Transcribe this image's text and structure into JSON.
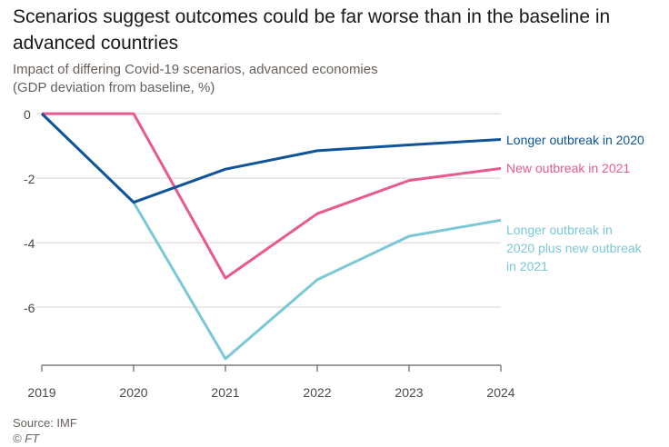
{
  "title": "Scenarios suggest outcomes could be far worse than in the baseline in advanced countries",
  "subtitle_line1": "Impact of differing Covid-19 scenarios, advanced economies",
  "subtitle_line2": "(GDP deviation from baseline, %)",
  "source": "Source: IMF",
  "credit": "© FT",
  "chart_data": {
    "type": "line",
    "x": [
      "2019",
      "2020",
      "2021",
      "2022",
      "2023",
      "2024"
    ],
    "ylim": [
      -7.8,
      0.2
    ],
    "yticks": [
      0,
      -2,
      -4,
      -6
    ],
    "yticklabels": [
      "0",
      "-2",
      "-4",
      "-6"
    ],
    "grid": true,
    "series": [
      {
        "name": "Longer outbreak in 2020",
        "color": "#0f5499",
        "values": [
          0,
          -2.75,
          -1.72,
          -1.15,
          -0.97,
          -0.8
        ]
      },
      {
        "name": "New outbreak in 2021",
        "color": "#e8598f",
        "values": [
          0,
          0,
          -5.1,
          -3.1,
          -2.07,
          -1.7
        ]
      },
      {
        "name": "Longer outbreak in 2020 plus new outbreak in 2021",
        "color": "#7ac8d6",
        "values": [
          0,
          -2.75,
          -7.6,
          -5.15,
          -3.8,
          -3.3
        ]
      }
    ],
    "series_label_lines": [
      [
        "Longer outbreak in 2020"
      ],
      [
        "New outbreak in 2021"
      ],
      [
        "Longer outbreak in",
        "2020 plus new outbreak",
        "in 2021"
      ]
    ]
  }
}
